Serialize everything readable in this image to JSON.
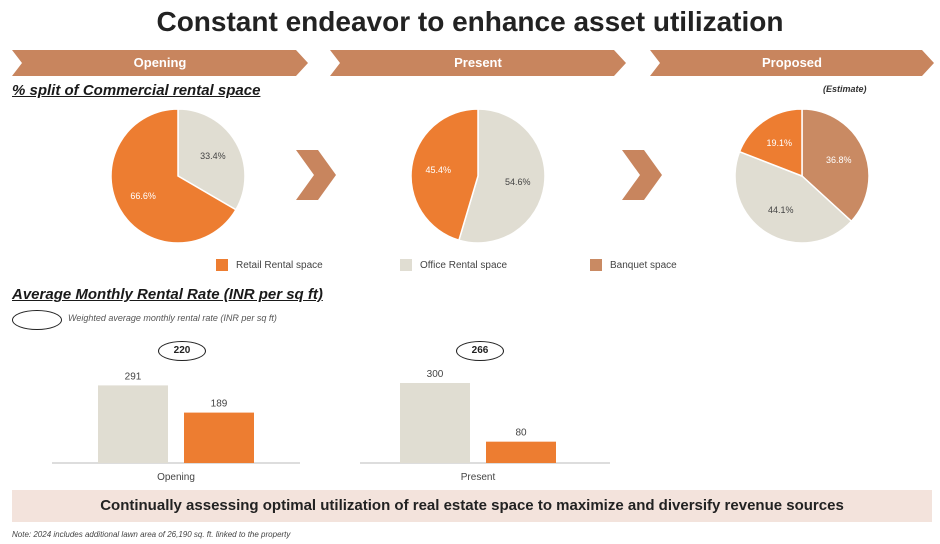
{
  "title": "Constant endeavor to enhance asset utilization",
  "phases": [
    "Opening",
    "Present",
    "Proposed"
  ],
  "section1_title": "% split of Commercial rental space",
  "estimate_label": "(Estimate)",
  "legend": [
    {
      "label": "Retail Rental space",
      "color": "#ed7d31"
    },
    {
      "label": "Office Rental space",
      "color": "#e0ddd2"
    },
    {
      "label": "Banquet space",
      "color": "#c98a63"
    }
  ],
  "section2_title": "Average Monthly Rental Rate (INR per sq ft)",
  "weighted_avg_label": "Weighted average monthly rental rate (INR per sq ft)",
  "weighted_avgs": [
    "220",
    "266"
  ],
  "banner": "Continually assessing optimal utilization of real estate space to maximize and diversify revenue sources",
  "note": "Note: 2024 includes additional lawn area of 26,190 sq. ft. linked to the property",
  "colors": {
    "accent": "#c8855e",
    "retail": "#ed7d31",
    "office": "#e0ddd2",
    "banquet": "#c98a63"
  },
  "chart_data": [
    {
      "type": "pie",
      "title": "Opening",
      "slices": [
        {
          "name": "Office Rental space",
          "value": 33.4,
          "label": "33.4%"
        },
        {
          "name": "Retail Rental space",
          "value": 66.6,
          "label": "66.6%"
        }
      ]
    },
    {
      "type": "pie",
      "title": "Present",
      "slices": [
        {
          "name": "Office Rental space",
          "value": 54.6,
          "label": "54.6%"
        },
        {
          "name": "Retail Rental space",
          "value": 45.4,
          "label": "45.4%"
        }
      ]
    },
    {
      "type": "pie",
      "title": "Proposed",
      "slices": [
        {
          "name": "Banquet space",
          "value": 36.8,
          "label": "36.8%"
        },
        {
          "name": "Office Rental space",
          "value": 44.1,
          "label": "44.1%"
        },
        {
          "name": "Retail Rental space",
          "value": 19.1,
          "label": "19.1%"
        }
      ]
    },
    {
      "type": "bar",
      "categories": [
        "Opening",
        "Present"
      ],
      "series": [
        {
          "name": "Office Rental space",
          "values": [
            291,
            300
          ]
        },
        {
          "name": "Retail Rental space",
          "values": [
            189,
            80
          ]
        }
      ]
    }
  ]
}
